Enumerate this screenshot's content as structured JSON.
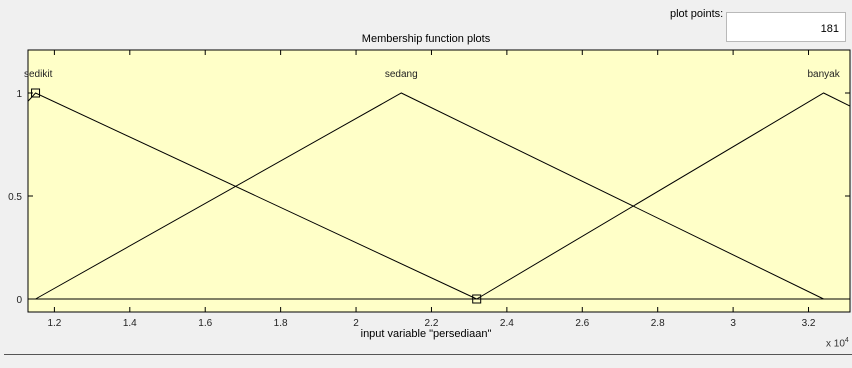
{
  "plot_points": {
    "label": "plot points:",
    "value": "181"
  },
  "chart_data": {
    "type": "line",
    "title": "Membership function plots",
    "xlabel": "input variable \"persediaan\"",
    "x_multiplier": "x 10",
    "x_multiplier_exp": "4",
    "xlim": [
      1.13,
      3.31
    ],
    "ylim": [
      0,
      1
    ],
    "xticks": [
      "1.2",
      "1.4",
      "1.6",
      "1.8",
      "2",
      "2.2",
      "2.4",
      "2.6",
      "2.8",
      "3",
      "3.2"
    ],
    "yticks": [
      "0",
      "0.5",
      "1"
    ],
    "background": "#ffffc8",
    "series": [
      {
        "name": "sedikit",
        "x": [
          1.1,
          1.15,
          2.32
        ],
        "y": [
          0.9,
          1,
          0
        ]
      },
      {
        "name": "sedang",
        "x": [
          1.15,
          2.12,
          3.24
        ],
        "y": [
          0,
          1,
          0
        ]
      },
      {
        "name": "banyak",
        "x": [
          2.32,
          3.24,
          3.35
        ],
        "y": [
          0,
          1,
          0.9
        ]
      }
    ],
    "selected_points": [
      {
        "x": 1.15,
        "y": 1
      },
      {
        "x": 2.32,
        "y": 0
      }
    ]
  }
}
